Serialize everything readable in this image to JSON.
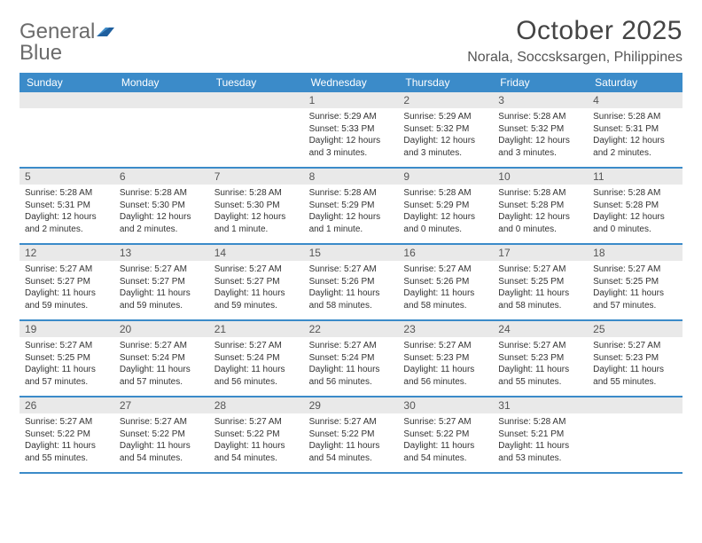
{
  "logo": {
    "word1": "General",
    "word2": "Blue"
  },
  "title": "October 2025",
  "location": "Norala, Soccsksargen, Philippines",
  "colors": {
    "header_bg": "#3b8bc9",
    "header_text": "#ffffff",
    "daynum_bg": "#e9e9e9",
    "daynum_text": "#555555",
    "body_text": "#333333",
    "rule": "#3b8bc9",
    "logo_gray": "#6b6b6b",
    "logo_blue": "#2f7bbf"
  },
  "weekdays": [
    "Sunday",
    "Monday",
    "Tuesday",
    "Wednesday",
    "Thursday",
    "Friday",
    "Saturday"
  ],
  "weeks": [
    [
      null,
      null,
      null,
      {
        "n": "1",
        "sr": "5:29 AM",
        "ss": "5:33 PM",
        "dl": "12 hours and 3 minutes."
      },
      {
        "n": "2",
        "sr": "5:29 AM",
        "ss": "5:32 PM",
        "dl": "12 hours and 3 minutes."
      },
      {
        "n": "3",
        "sr": "5:28 AM",
        "ss": "5:32 PM",
        "dl": "12 hours and 3 minutes."
      },
      {
        "n": "4",
        "sr": "5:28 AM",
        "ss": "5:31 PM",
        "dl": "12 hours and 2 minutes."
      }
    ],
    [
      {
        "n": "5",
        "sr": "5:28 AM",
        "ss": "5:31 PM",
        "dl": "12 hours and 2 minutes."
      },
      {
        "n": "6",
        "sr": "5:28 AM",
        "ss": "5:30 PM",
        "dl": "12 hours and 2 minutes."
      },
      {
        "n": "7",
        "sr": "5:28 AM",
        "ss": "5:30 PM",
        "dl": "12 hours and 1 minute."
      },
      {
        "n": "8",
        "sr": "5:28 AM",
        "ss": "5:29 PM",
        "dl": "12 hours and 1 minute."
      },
      {
        "n": "9",
        "sr": "5:28 AM",
        "ss": "5:29 PM",
        "dl": "12 hours and 0 minutes."
      },
      {
        "n": "10",
        "sr": "5:28 AM",
        "ss": "5:28 PM",
        "dl": "12 hours and 0 minutes."
      },
      {
        "n": "11",
        "sr": "5:28 AM",
        "ss": "5:28 PM",
        "dl": "12 hours and 0 minutes."
      }
    ],
    [
      {
        "n": "12",
        "sr": "5:27 AM",
        "ss": "5:27 PM",
        "dl": "11 hours and 59 minutes."
      },
      {
        "n": "13",
        "sr": "5:27 AM",
        "ss": "5:27 PM",
        "dl": "11 hours and 59 minutes."
      },
      {
        "n": "14",
        "sr": "5:27 AM",
        "ss": "5:27 PM",
        "dl": "11 hours and 59 minutes."
      },
      {
        "n": "15",
        "sr": "5:27 AM",
        "ss": "5:26 PM",
        "dl": "11 hours and 58 minutes."
      },
      {
        "n": "16",
        "sr": "5:27 AM",
        "ss": "5:26 PM",
        "dl": "11 hours and 58 minutes."
      },
      {
        "n": "17",
        "sr": "5:27 AM",
        "ss": "5:25 PM",
        "dl": "11 hours and 58 minutes."
      },
      {
        "n": "18",
        "sr": "5:27 AM",
        "ss": "5:25 PM",
        "dl": "11 hours and 57 minutes."
      }
    ],
    [
      {
        "n": "19",
        "sr": "5:27 AM",
        "ss": "5:25 PM",
        "dl": "11 hours and 57 minutes."
      },
      {
        "n": "20",
        "sr": "5:27 AM",
        "ss": "5:24 PM",
        "dl": "11 hours and 57 minutes."
      },
      {
        "n": "21",
        "sr": "5:27 AM",
        "ss": "5:24 PM",
        "dl": "11 hours and 56 minutes."
      },
      {
        "n": "22",
        "sr": "5:27 AM",
        "ss": "5:24 PM",
        "dl": "11 hours and 56 minutes."
      },
      {
        "n": "23",
        "sr": "5:27 AM",
        "ss": "5:23 PM",
        "dl": "11 hours and 56 minutes."
      },
      {
        "n": "24",
        "sr": "5:27 AM",
        "ss": "5:23 PM",
        "dl": "11 hours and 55 minutes."
      },
      {
        "n": "25",
        "sr": "5:27 AM",
        "ss": "5:23 PM",
        "dl": "11 hours and 55 minutes."
      }
    ],
    [
      {
        "n": "26",
        "sr": "5:27 AM",
        "ss": "5:22 PM",
        "dl": "11 hours and 55 minutes."
      },
      {
        "n": "27",
        "sr": "5:27 AM",
        "ss": "5:22 PM",
        "dl": "11 hours and 54 minutes."
      },
      {
        "n": "28",
        "sr": "5:27 AM",
        "ss": "5:22 PM",
        "dl": "11 hours and 54 minutes."
      },
      {
        "n": "29",
        "sr": "5:27 AM",
        "ss": "5:22 PM",
        "dl": "11 hours and 54 minutes."
      },
      {
        "n": "30",
        "sr": "5:27 AM",
        "ss": "5:22 PM",
        "dl": "11 hours and 54 minutes."
      },
      {
        "n": "31",
        "sr": "5:28 AM",
        "ss": "5:21 PM",
        "dl": "11 hours and 53 minutes."
      },
      null
    ]
  ],
  "labels": {
    "sunrise": "Sunrise:",
    "sunset": "Sunset:",
    "daylight": "Daylight:"
  }
}
